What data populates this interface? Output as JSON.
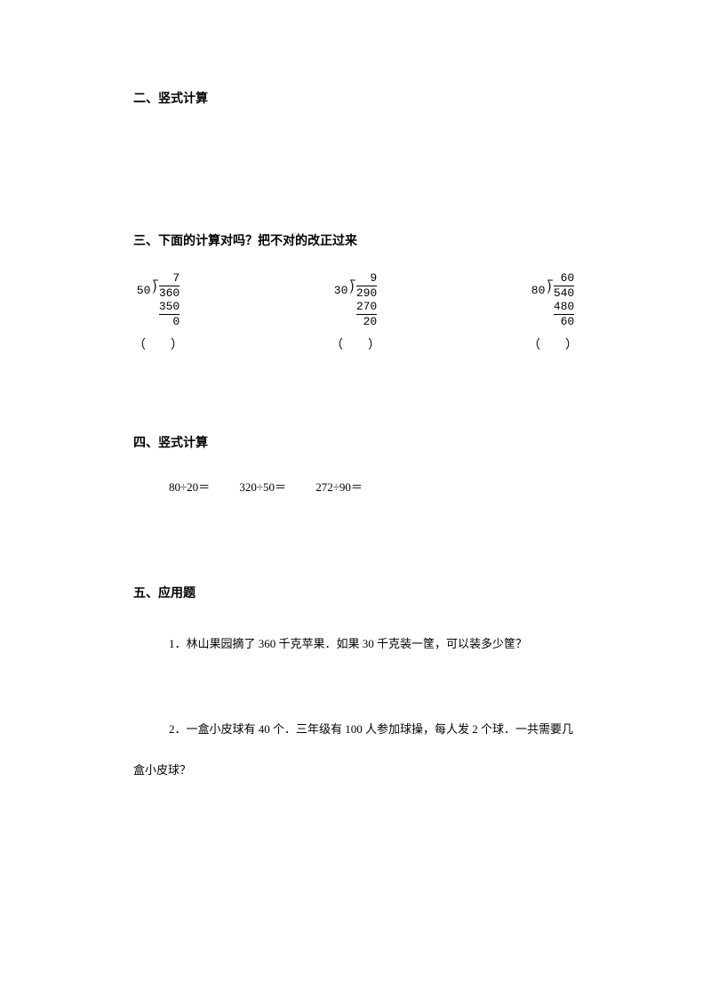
{
  "section2": {
    "heading": "二、竖式计算"
  },
  "section3": {
    "heading": "三、下面的计算对吗？把不对的改正过来",
    "problems": [
      {
        "divisor": "50",
        "quotient": "7",
        "dividend": "360",
        "sub": "350",
        "remainder": "0",
        "paren": "（　　）"
      },
      {
        "divisor": "30",
        "quotient": "9",
        "dividend": "290",
        "sub": "270",
        "remainder": "20",
        "paren": "（　　）"
      },
      {
        "divisor": "80",
        "quotient": "60",
        "dividend": "540",
        "sub": "480",
        "remainder": "60",
        "paren": "（　　）"
      }
    ]
  },
  "section4": {
    "heading": "四、竖式计算",
    "items": [
      "80÷20＝",
      "320÷50＝",
      "272÷90＝"
    ]
  },
  "section5": {
    "heading": "五、应用题",
    "problem1": "1．林山果园摘了 360 千克苹果．如果 30 千克装一筐，可以装多少筐？",
    "problem2_line1": "2．一盒小皮球有 40 个．三年级有 100 人参加球操，每人发 2 个球．一共需要几",
    "problem2_line2": "盒小皮球？"
  }
}
